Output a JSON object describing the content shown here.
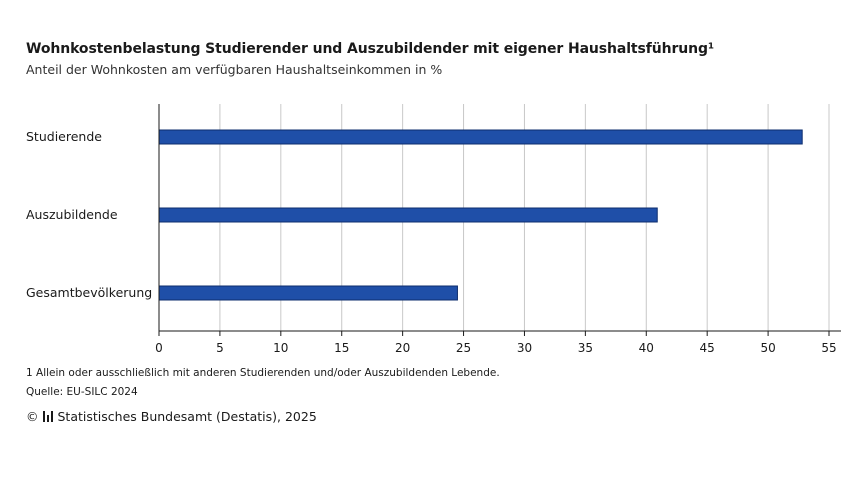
{
  "header": {
    "title": "Wohnkostenbelastung Studierender und Auszubildender mit eigener Haushaltsführung¹",
    "subtitle": "Anteil der Wohnkosten am verfügbaren Haushaltseinkommen in %"
  },
  "chart_data": {
    "type": "bar",
    "orientation": "horizontal",
    "categories": [
      "Studierende",
      "Auszubildende",
      "Gesamtbevölkerung"
    ],
    "values": [
      52.8,
      40.9,
      24.5
    ],
    "xlim": [
      0,
      55
    ],
    "xticks": [
      "0",
      "5",
      "10",
      "15",
      "20",
      "25",
      "30",
      "35",
      "40",
      "45",
      "50",
      "55"
    ],
    "grid": true,
    "bar_color": "#1f4fa8"
  },
  "footer": {
    "footnote": "1 Allein oder ausschließlich mit anderen Studierenden und/oder Auszubildenden Lebende.",
    "source": "Quelle: EU-SILC 2024",
    "copyright": "Statistisches Bundesamt (Destatis), 2025",
    "copyright_symbol": "©"
  }
}
